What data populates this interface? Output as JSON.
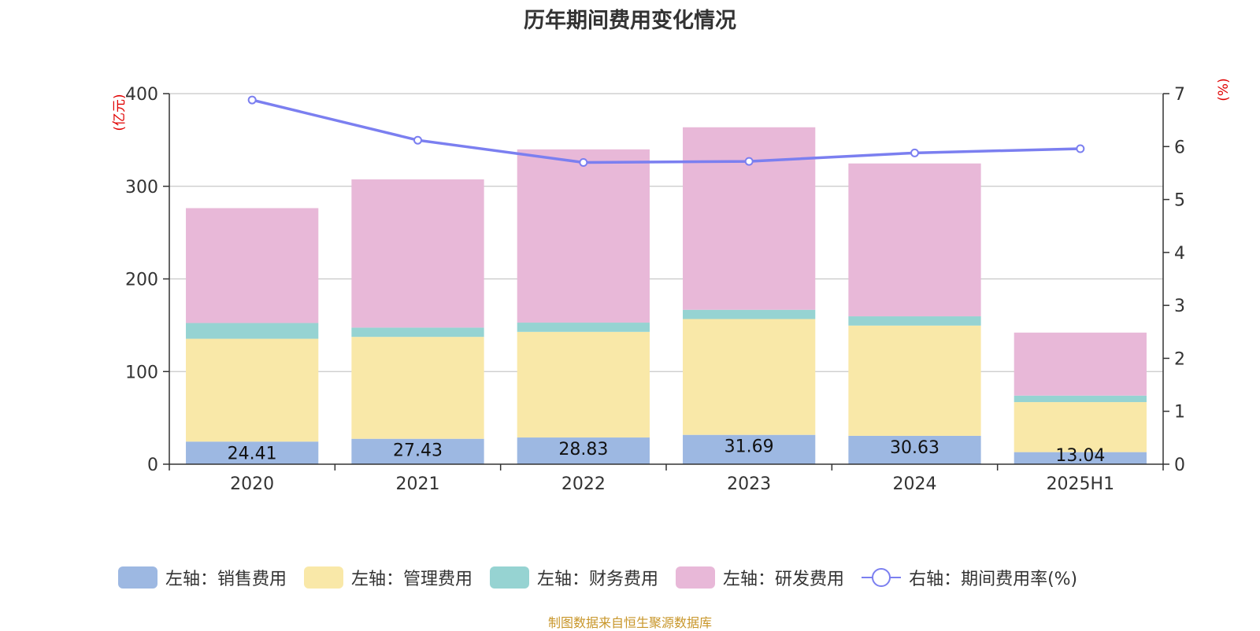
{
  "chart_data": {
    "type": "bar",
    "title": "历年期间费用变化情况",
    "categories": [
      "2020",
      "2021",
      "2022",
      "2023",
      "2024",
      "2025H1"
    ],
    "left_axis": {
      "unit_label": "(亿元)",
      "ylim": [
        0,
        400
      ],
      "ticks": [
        0,
        100,
        200,
        300,
        400
      ]
    },
    "right_axis": {
      "unit_label": "(%)",
      "ylim": [
        0,
        7
      ],
      "ticks": [
        0,
        1,
        2,
        3,
        4,
        5,
        6,
        7
      ]
    },
    "grid": true,
    "legend_position": "bottom",
    "series": [
      {
        "name": "左轴：销售费用",
        "type": "bar",
        "stack": true,
        "color": "#9db8e2",
        "values": [
          24.41,
          27.43,
          28.83,
          31.69,
          30.63,
          13.04
        ],
        "show_labels": true
      },
      {
        "name": "左轴：管理费用",
        "type": "bar",
        "stack": true,
        "color": "#f9e8a8",
        "values": [
          111,
          110,
          114,
          125,
          119,
          54
        ]
      },
      {
        "name": "左轴：财务费用",
        "type": "bar",
        "stack": true,
        "color": "#96d3d2",
        "values": [
          17,
          10,
          10,
          10,
          10,
          7
        ]
      },
      {
        "name": "左轴：研发费用",
        "type": "bar",
        "stack": true,
        "color": "#e8b8d8",
        "values": [
          124,
          160,
          187,
          197,
          165,
          68
        ]
      },
      {
        "name": "右轴：期间费用率(%)",
        "type": "line",
        "axis": "right",
        "color": "#7b7ff0",
        "values": [
          6.88,
          6.12,
          5.7,
          5.72,
          5.88,
          5.96
        ]
      }
    ]
  },
  "source_note": "制图数据来自恒生聚源数据库"
}
